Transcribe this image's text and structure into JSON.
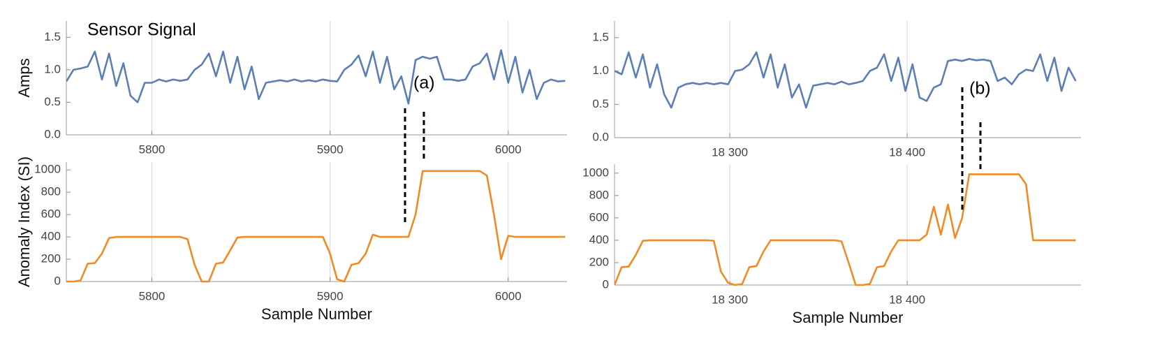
{
  "chart_data": [
    {
      "type": "line",
      "ylabel": "Amps",
      "color": "#5b7fb4",
      "x": [
        5752,
        5756,
        5760,
        5764,
        5768,
        5772,
        5776,
        5780,
        5784,
        5788,
        5792,
        5796,
        5800,
        5804,
        5808,
        5812,
        5816,
        5820,
        5824,
        5828,
        5832,
        5836,
        5840,
        5844,
        5848,
        5852,
        5856,
        5860,
        5864,
        5868,
        5872,
        5876,
        5880,
        5884,
        5888,
        5892,
        5896,
        5900,
        5904,
        5908,
        5912,
        5916,
        5920,
        5924,
        5928,
        5932,
        5936,
        5940,
        5944,
        5948,
        5952,
        5956,
        5960,
        5964,
        5968,
        5972,
        5976,
        5980,
        5984,
        5988,
        5992,
        5996,
        6000,
        6004,
        6008,
        6012,
        6016,
        6020,
        6024,
        6028,
        6032
      ],
      "values": [
        0.82,
        1.0,
        1.02,
        1.05,
        1.28,
        0.85,
        1.25,
        0.75,
        1.1,
        0.6,
        0.5,
        0.8,
        0.8,
        0.85,
        0.82,
        0.85,
        0.83,
        0.85,
        1.0,
        1.08,
        1.25,
        0.9,
        1.28,
        0.8,
        1.2,
        0.7,
        1.05,
        0.55,
        0.8,
        0.82,
        0.84,
        0.82,
        0.85,
        0.82,
        0.84,
        0.82,
        0.85,
        0.83,
        0.82,
        1.0,
        1.08,
        1.22,
        0.9,
        1.28,
        0.8,
        1.2,
        0.7,
        0.9,
        0.48,
        1.15,
        1.2,
        1.17,
        1.2,
        0.85,
        0.85,
        0.83,
        0.85,
        1.05,
        1.1,
        1.25,
        0.85,
        1.3,
        0.8,
        1.2,
        0.65,
        1.0,
        0.55,
        0.8,
        0.85,
        0.82,
        0.83
      ],
      "xlim": [
        5752,
        6033
      ],
      "xticks": [
        5800,
        5900,
        6000
      ],
      "ylim": [
        0,
        1.75
      ],
      "yticks": [
        {
          "value": 0,
          "label": "0.0"
        },
        0.5,
        {
          "value": 1,
          "label": "1.0"
        },
        1.5
      ],
      "grid": true
    },
    {
      "type": "line",
      "xlabel": "Sample Number",
      "ylabel": "Anomaly Index (SI)",
      "color": "#f08a24",
      "x": [
        5752,
        5756,
        5760,
        5764,
        5768,
        5772,
        5776,
        5780,
        5784,
        5788,
        5792,
        5796,
        5800,
        5804,
        5808,
        5812,
        5816,
        5820,
        5824,
        5828,
        5832,
        5836,
        5840,
        5844,
        5848,
        5852,
        5856,
        5860,
        5864,
        5868,
        5872,
        5876,
        5880,
        5884,
        5888,
        5892,
        5896,
        5900,
        5904,
        5908,
        5912,
        5916,
        5920,
        5924,
        5928,
        5932,
        5936,
        5940,
        5944,
        5948,
        5952,
        5956,
        5960,
        5964,
        5968,
        5972,
        5976,
        5980,
        5984,
        5988,
        5992,
        5996,
        6000,
        6004,
        6008,
        6012,
        6016,
        6020,
        6024,
        6028,
        6032
      ],
      "values": [
        0,
        0,
        10,
        160,
        165,
        250,
        390,
        400,
        400,
        400,
        400,
        400,
        400,
        400,
        400,
        400,
        400,
        380,
        150,
        0,
        0,
        160,
        170,
        280,
        395,
        400,
        400,
        400,
        400,
        400,
        400,
        400,
        400,
        400,
        400,
        400,
        400,
        250,
        20,
        0,
        150,
        165,
        250,
        420,
        400,
        400,
        400,
        400,
        400,
        600,
        990,
        990,
        990,
        990,
        990,
        990,
        990,
        990,
        990,
        950,
        600,
        200,
        410,
        400,
        400,
        400,
        400,
        400,
        400,
        400,
        400
      ],
      "xlim": [
        5752,
        6033
      ],
      "xticks": [
        5800,
        5900,
        6000
      ],
      "ylim": [
        0,
        1070
      ],
      "yticks": [
        0,
        200,
        400,
        600,
        800,
        1000
      ],
      "grid": true
    },
    {
      "type": "line",
      "color": "#5b7fb4",
      "x": [
        18235,
        18239,
        18243,
        18247,
        18251,
        18255,
        18259,
        18263,
        18267,
        18271,
        18275,
        18279,
        18283,
        18287,
        18291,
        18295,
        18299,
        18303,
        18307,
        18311,
        18315,
        18319,
        18323,
        18327,
        18331,
        18335,
        18339,
        18343,
        18347,
        18351,
        18355,
        18359,
        18363,
        18367,
        18371,
        18375,
        18379,
        18383,
        18387,
        18391,
        18395,
        18399,
        18403,
        18407,
        18411,
        18415,
        18419,
        18423,
        18427,
        18431,
        18435,
        18439,
        18443,
        18447,
        18451,
        18455,
        18459,
        18463,
        18467,
        18471,
        18475,
        18479,
        18483,
        18487,
        18491,
        18495
      ],
      "values": [
        1.0,
        0.95,
        1.28,
        0.9,
        1.25,
        0.75,
        1.1,
        0.65,
        0.45,
        0.75,
        0.8,
        0.82,
        0.8,
        0.82,
        0.8,
        0.82,
        0.8,
        1.0,
        1.02,
        1.1,
        1.28,
        0.9,
        1.25,
        0.75,
        1.1,
        0.6,
        0.8,
        0.45,
        0.78,
        0.8,
        0.82,
        0.8,
        0.84,
        0.8,
        0.82,
        0.85,
        1.0,
        1.05,
        1.25,
        0.85,
        1.2,
        0.7,
        1.1,
        0.6,
        0.55,
        0.75,
        0.8,
        1.15,
        1.17,
        1.15,
        1.18,
        1.16,
        1.17,
        1.15,
        0.85,
        0.9,
        0.8,
        0.95,
        1.02,
        1.0,
        1.25,
        0.85,
        1.2,
        0.7,
        1.05,
        0.85
      ],
      "xlim": [
        18235,
        18498
      ],
      "xticks": [
        {
          "value": 18300,
          "label": "18 300"
        },
        {
          "value": 18400,
          "label": "18 400"
        }
      ],
      "ylim": [
        0,
        1.75
      ],
      "yticks": [
        {
          "value": 0,
          "label": "0.0"
        },
        0.5,
        {
          "value": 1,
          "label": "1.0"
        },
        1.5
      ],
      "grid": true
    },
    {
      "type": "line",
      "xlabel": "Sample Number",
      "color": "#f08a24",
      "x": [
        18235,
        18239,
        18243,
        18247,
        18251,
        18255,
        18259,
        18263,
        18267,
        18271,
        18275,
        18279,
        18283,
        18287,
        18291,
        18295,
        18299,
        18303,
        18307,
        18311,
        18315,
        18319,
        18323,
        18327,
        18331,
        18335,
        18339,
        18343,
        18347,
        18351,
        18355,
        18359,
        18363,
        18367,
        18371,
        18375,
        18379,
        18383,
        18387,
        18391,
        18395,
        18399,
        18403,
        18407,
        18411,
        18415,
        18419,
        18423,
        18427,
        18431,
        18435,
        18439,
        18443,
        18447,
        18451,
        18455,
        18459,
        18463,
        18467,
        18471,
        18475,
        18479,
        18483,
        18487,
        18491,
        18495
      ],
      "values": [
        0,
        160,
        165,
        270,
        395,
        400,
        400,
        400,
        400,
        400,
        400,
        400,
        400,
        400,
        395,
        120,
        20,
        0,
        10,
        160,
        170,
        300,
        400,
        400,
        400,
        400,
        400,
        400,
        400,
        400,
        400,
        400,
        390,
        200,
        0,
        0,
        10,
        160,
        170,
        300,
        400,
        400,
        400,
        400,
        450,
        700,
        450,
        720,
        420,
        600,
        990,
        990,
        990,
        990,
        990,
        990,
        990,
        990,
        900,
        400,
        400,
        400,
        400,
        400,
        400,
        400
      ],
      "xlim": [
        18235,
        18498
      ],
      "xticks": [
        {
          "value": 18300,
          "label": "18 300"
        },
        {
          "value": 18400,
          "label": "18 400"
        }
      ],
      "ylim": [
        0,
        1080
      ],
      "yticks": [
        0,
        200,
        400,
        600,
        800,
        1000
      ],
      "grid": true
    }
  ],
  "annotations": {
    "title": "Sensor Signal",
    "a": "(a)",
    "b": "(b)"
  }
}
